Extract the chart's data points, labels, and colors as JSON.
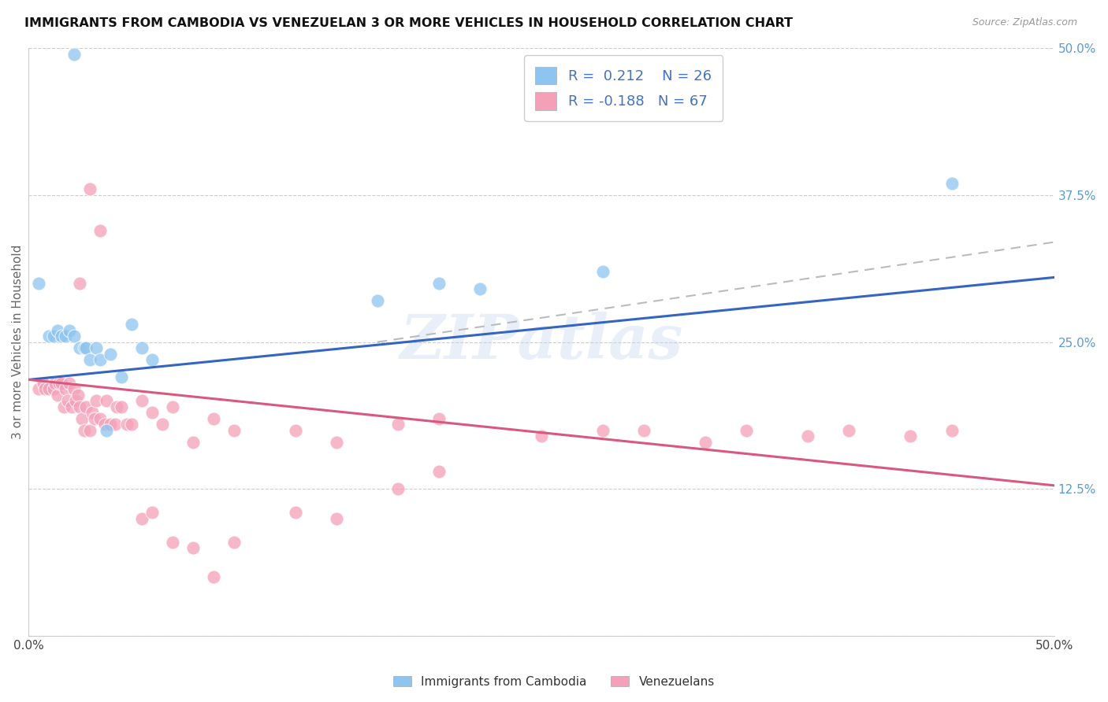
{
  "title": "IMMIGRANTS FROM CAMBODIA VS VENEZUELAN 3 OR MORE VEHICLES IN HOUSEHOLD CORRELATION CHART",
  "source": "Source: ZipAtlas.com",
  "ylabel": "3 or more Vehicles in Household",
  "ytick_values": [
    0.0,
    0.125,
    0.25,
    0.375,
    0.5
  ],
  "ytick_labels": [
    "",
    "12.5%",
    "25.0%",
    "37.5%",
    "50.0%"
  ],
  "xlim": [
    0.0,
    0.5
  ],
  "ylim": [
    0.0,
    0.5
  ],
  "color_cambodia": "#8DC4F0",
  "color_venezuela": "#F4A0B8",
  "color_line_cambodia": "#3465C0",
  "color_line_venezuela": "#D85880",
  "color_trend_dashed": "#BBBBBB",
  "watermark": "ZIPatlas",
  "cambodia_line_x0": 0.0,
  "cambodia_line_y0": 0.218,
  "cambodia_line_x1": 0.5,
  "cambodia_line_y1": 0.305,
  "venezuela_line_x0": 0.0,
  "venezuela_line_y0": 0.218,
  "venezuela_line_x1": 0.5,
  "venezuela_line_y1": 0.128,
  "dashed_line_x0": 0.17,
  "dashed_line_y0": 0.25,
  "dashed_line_x1": 0.5,
  "dashed_line_y1": 0.335,
  "cambodia_x": [
    0.022,
    0.005,
    0.01,
    0.012,
    0.014,
    0.016,
    0.018,
    0.02,
    0.022,
    0.025,
    0.027,
    0.028,
    0.03,
    0.033,
    0.035,
    0.038,
    0.04,
    0.045,
    0.05,
    0.055,
    0.06,
    0.17,
    0.2,
    0.22,
    0.28,
    0.45
  ],
  "cambodia_y": [
    0.495,
    0.3,
    0.255,
    0.255,
    0.26,
    0.255,
    0.255,
    0.26,
    0.255,
    0.245,
    0.245,
    0.245,
    0.235,
    0.245,
    0.235,
    0.175,
    0.24,
    0.22,
    0.265,
    0.245,
    0.235,
    0.285,
    0.3,
    0.295,
    0.31,
    0.385
  ],
  "venezuela_x": [
    0.005,
    0.007,
    0.008,
    0.01,
    0.012,
    0.013,
    0.014,
    0.015,
    0.016,
    0.017,
    0.018,
    0.019,
    0.02,
    0.021,
    0.022,
    0.023,
    0.024,
    0.025,
    0.026,
    0.027,
    0.028,
    0.03,
    0.031,
    0.032,
    0.033,
    0.035,
    0.037,
    0.038,
    0.04,
    0.042,
    0.043,
    0.045,
    0.048,
    0.05,
    0.055,
    0.06,
    0.065,
    0.07,
    0.08,
    0.09,
    0.1,
    0.13,
    0.15,
    0.18,
    0.2,
    0.25,
    0.28,
    0.3,
    0.33,
    0.35,
    0.38,
    0.4,
    0.43,
    0.45,
    0.18,
    0.2,
    0.055,
    0.025,
    0.03,
    0.035,
    0.06,
    0.07,
    0.08,
    0.09,
    0.1,
    0.13,
    0.15
  ],
  "venezuela_y": [
    0.21,
    0.215,
    0.21,
    0.21,
    0.21,
    0.215,
    0.205,
    0.215,
    0.215,
    0.195,
    0.21,
    0.2,
    0.215,
    0.195,
    0.21,
    0.2,
    0.205,
    0.195,
    0.185,
    0.175,
    0.195,
    0.175,
    0.19,
    0.185,
    0.2,
    0.185,
    0.18,
    0.2,
    0.18,
    0.18,
    0.195,
    0.195,
    0.18,
    0.18,
    0.2,
    0.19,
    0.18,
    0.195,
    0.165,
    0.185,
    0.175,
    0.175,
    0.165,
    0.18,
    0.185,
    0.17,
    0.175,
    0.175,
    0.165,
    0.175,
    0.17,
    0.175,
    0.17,
    0.175,
    0.125,
    0.14,
    0.1,
    0.3,
    0.38,
    0.345,
    0.105,
    0.08,
    0.075,
    0.05,
    0.08,
    0.105,
    0.1
  ]
}
